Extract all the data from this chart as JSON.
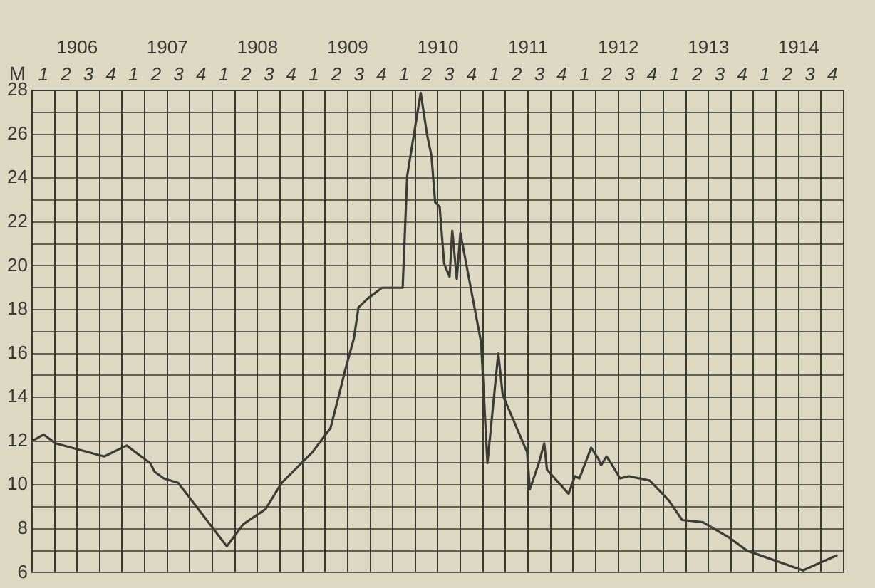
{
  "chart_data": {
    "type": "line",
    "ylabel": "M",
    "grid": true,
    "color": "#3d3b36",
    "marker": "none",
    "line_style": "solid",
    "legend": false,
    "xlim": [
      1906,
      1915
    ],
    "ylim": [
      6,
      28
    ],
    "xticks": [
      {
        "value": 1906,
        "label": null
      },
      {
        "value": 1906.25,
        "label": null
      },
      {
        "value": 1906.5,
        "label": "1906"
      },
      {
        "value": 1906.75,
        "label": null
      },
      {
        "value": 1907,
        "label": null
      },
      {
        "value": 1907.25,
        "label": null
      },
      {
        "value": 1907.5,
        "label": "1907"
      },
      {
        "value": 1907.75,
        "label": null
      },
      {
        "value": 1908,
        "label": null
      },
      {
        "value": 1908.25,
        "label": null
      },
      {
        "value": 1908.5,
        "label": "1908"
      },
      {
        "value": 1908.75,
        "label": null
      },
      {
        "value": 1909,
        "label": null
      },
      {
        "value": 1909.25,
        "label": null
      },
      {
        "value": 1909.5,
        "label": "1909"
      },
      {
        "value": 1909.75,
        "label": null
      },
      {
        "value": 1910,
        "label": null
      },
      {
        "value": 1910.25,
        "label": null
      },
      {
        "value": 1910.5,
        "label": "1910"
      },
      {
        "value": 1910.75,
        "label": null
      },
      {
        "value": 1911,
        "label": null
      },
      {
        "value": 1911.25,
        "label": null
      },
      {
        "value": 1911.5,
        "label": "1911"
      },
      {
        "value": 1911.75,
        "label": null
      },
      {
        "value": 1912,
        "label": null
      },
      {
        "value": 1912.25,
        "label": null
      },
      {
        "value": 1912.5,
        "label": "1912"
      },
      {
        "value": 1912.75,
        "label": null
      },
      {
        "value": 1913,
        "label": null
      },
      {
        "value": 1913.25,
        "label": null
      },
      {
        "value": 1913.5,
        "label": "1913"
      },
      {
        "value": 1913.75,
        "label": null
      },
      {
        "value": 1914,
        "label": null
      },
      {
        "value": 1914.25,
        "label": null
      },
      {
        "value": 1914.5,
        "label": "1914"
      },
      {
        "value": 1914.75,
        "label": null
      },
      {
        "value": 1915,
        "label": null
      }
    ],
    "annotations": [
      "1",
      "2",
      "3",
      "4",
      "1",
      "2",
      "3",
      "4",
      "1",
      "2",
      "3",
      "4",
      "1",
      "2",
      "3",
      "4",
      "1",
      "2",
      "3",
      "4",
      "1",
      "2",
      "3",
      "4",
      "1",
      "2",
      "3",
      "4",
      "1",
      "2",
      "3",
      "4",
      "1",
      "2",
      "3",
      "4"
    ],
    "yticks": [
      6,
      {
        "value": 7,
        "label": null
      },
      8,
      {
        "value": 9,
        "label": null
      },
      10,
      {
        "value": 11,
        "label": null
      },
      12,
      {
        "value": 13,
        "label": null
      },
      14,
      {
        "value": 15,
        "label": null
      },
      16,
      {
        "value": 17,
        "label": null
      },
      18,
      {
        "value": 19,
        "label": null
      },
      20,
      {
        "value": 21,
        "label": null
      },
      22,
      {
        "value": 23,
        "label": null
      },
      24,
      {
        "value": 25,
        "label": null
      },
      26,
      {
        "value": 27,
        "label": null
      },
      28
    ],
    "x": [
      1906.0,
      1906.13,
      1906.26,
      1906.8,
      1907.05,
      1907.21,
      1907.31,
      1907.36,
      1907.46,
      1907.62,
      1908.16,
      1908.34,
      1908.59,
      1908.77,
      1909.11,
      1909.31,
      1909.41,
      1909.47,
      1909.57,
      1909.62,
      1909.72,
      1909.88,
      1910.11,
      1910.16,
      1910.31,
      1910.38,
      1910.43,
      1910.47,
      1910.52,
      1910.57,
      1910.63,
      1910.66,
      1910.71,
      1910.75,
      1910.98,
      1911.05,
      1911.17,
      1911.22,
      1911.49,
      1911.52,
      1911.62,
      1911.68,
      1911.71,
      1911.95,
      1912.02,
      1912.07,
      1912.2,
      1912.28,
      1912.31,
      1912.37,
      1912.42,
      1912.52,
      1912.62,
      1912.85,
      1913.06,
      1913.21,
      1913.44,
      1913.73,
      1913.93,
      1914.55,
      1914.93
    ],
    "values": [
      12.0,
      12.3,
      11.9,
      11.3,
      11.8,
      11.3,
      11.0,
      10.6,
      10.3,
      10.1,
      7.2,
      8.2,
      8.9,
      10.1,
      11.5,
      12.6,
      14.2,
      15.2,
      16.7,
      18.1,
      18.5,
      19.0,
      19.0,
      24.1,
      27.9,
      26.0,
      25.0,
      22.9,
      22.7,
      20.1,
      19.5,
      21.6,
      19.4,
      21.5,
      16.5,
      11.0,
      16.0,
      14.1,
      11.5,
      9.8,
      11.0,
      11.9,
      10.7,
      9.6,
      10.4,
      10.3,
      11.7,
      11.2,
      10.9,
      11.3,
      11.0,
      10.3,
      10.4,
      10.2,
      9.3,
      8.4,
      8.3,
      7.6,
      7.0,
      6.1,
      6.8
    ]
  }
}
